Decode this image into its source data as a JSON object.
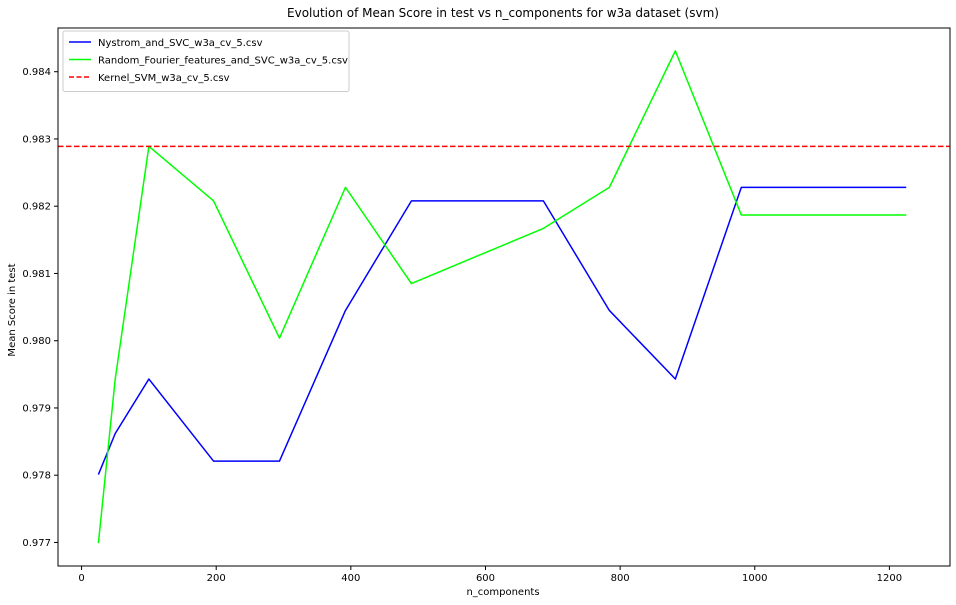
{
  "chart_data": {
    "type": "line",
    "title": "Evolution of Mean Score in test vs n_components for w3a dataset (svm)",
    "xlabel": "n_components",
    "ylabel": "Mean Score in test",
    "xlim": [
      -35,
      1290
    ],
    "ylim": [
      0.97665,
      0.98465
    ],
    "xticks": [
      0,
      200,
      400,
      600,
      800,
      1000,
      1200
    ],
    "yticks": [
      0.977,
      0.978,
      0.979,
      0.98,
      0.981,
      0.982,
      0.983,
      0.984
    ],
    "grid": false,
    "legend_position": "top-left",
    "series": [
      {
        "name": "Nystrom_and_SVC_w3a_cv_5.csv",
        "color": "#0000ff",
        "style": "solid",
        "x": [
          25,
          50,
          100,
          196,
          294,
          392,
          490,
          588,
          686,
          784,
          882,
          980,
          1225
        ],
        "y": [
          0.97801,
          0.97862,
          0.97943,
          0.97821,
          0.97821,
          0.98045,
          0.98208,
          0.98208,
          0.98208,
          0.98045,
          0.97943,
          0.98228,
          0.98228
        ]
      },
      {
        "name": "Random_Fourier_features_and_SVC_w3a_cv_5.csv",
        "color": "#00ff00",
        "style": "solid",
        "x": [
          25,
          50,
          100,
          196,
          294,
          392,
          490,
          588,
          686,
          784,
          882,
          980,
          1225
        ],
        "y": [
          0.97699,
          0.97943,
          0.98289,
          0.98208,
          0.98004,
          0.98228,
          0.98085,
          0.98126,
          0.98167,
          0.98228,
          0.98431,
          0.98187,
          0.98187
        ]
      },
      {
        "name": "Kernel_SVM_w3a_cv_5.csv",
        "color": "#ff0000",
        "style": "dashed",
        "y_constant": 0.98289
      }
    ]
  }
}
